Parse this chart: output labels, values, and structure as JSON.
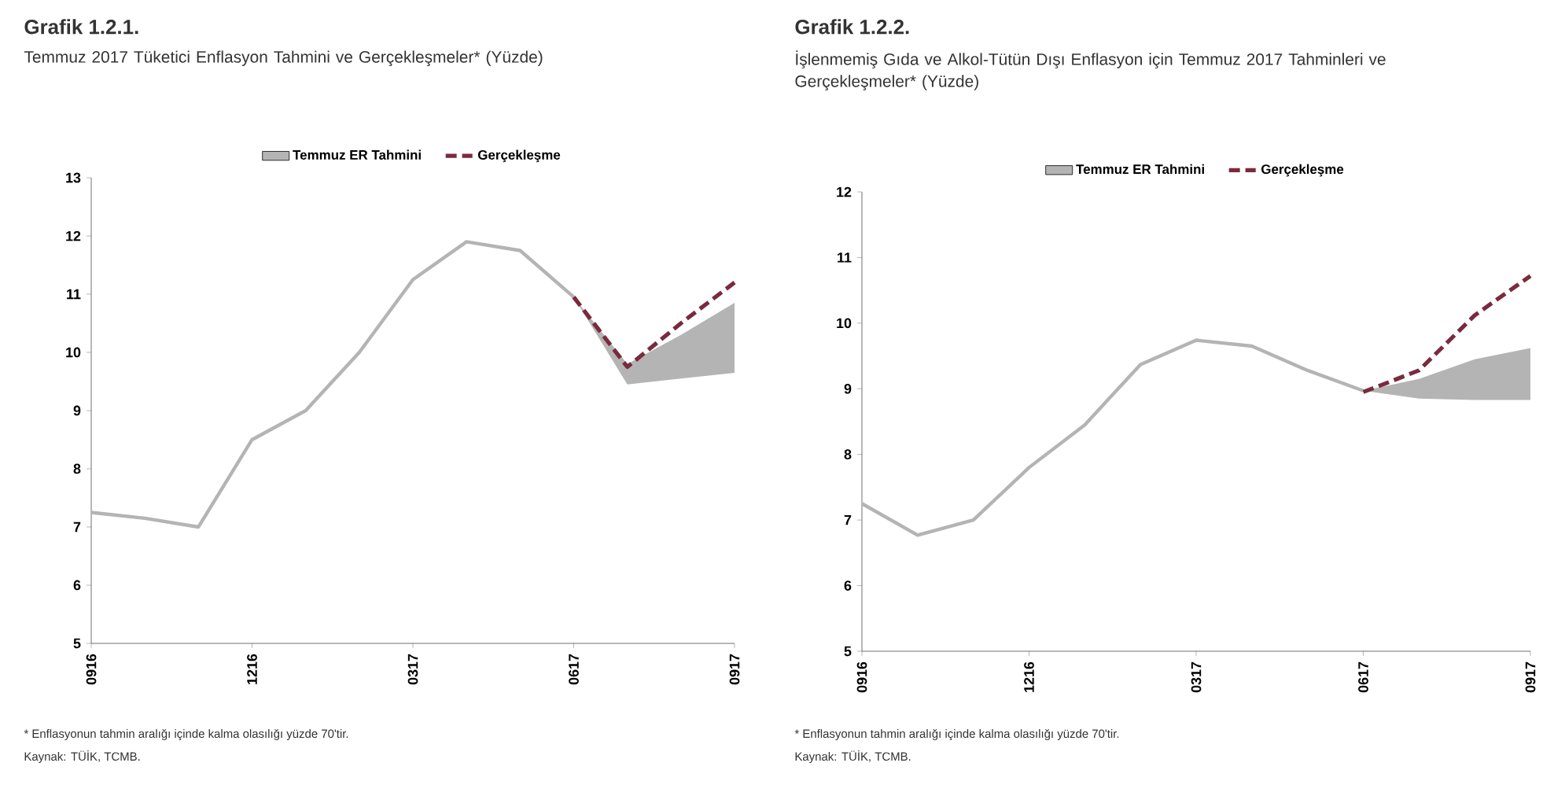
{
  "chart_data": [
    {
      "type": "line",
      "title": "Grafik 1.2.1.",
      "subtitle": "Temmuz 2017 Tüketici Enflasyon Tahmini ve Gerçekleşmeler* (Yüzde)",
      "categories": [
        "0916",
        null,
        null,
        "1216",
        null,
        null,
        "0317",
        null,
        null,
        "0617",
        null,
        null,
        "0917"
      ],
      "series": [
        {
          "name": "Temmuz ER Tahmini",
          "color": "#b4b4b4",
          "line_style": "solid",
          "values": [
            7.25,
            7.15,
            7.0,
            8.5,
            9.0,
            10.0,
            11.25,
            11.9,
            11.75,
            10.95,
            null,
            null,
            null
          ],
          "lower": [
            null,
            null,
            null,
            null,
            null,
            null,
            null,
            null,
            null,
            10.95,
            9.45,
            9.55,
            9.65
          ],
          "upper": [
            null,
            null,
            null,
            null,
            null,
            null,
            null,
            null,
            null,
            10.95,
            9.8,
            10.3,
            10.85
          ]
        },
        {
          "name": "Gerçekleşme",
          "color": "#7b2a3e",
          "line_style": "dashed",
          "values": [
            null,
            null,
            null,
            null,
            null,
            null,
            null,
            null,
            null,
            10.95,
            9.75,
            10.5,
            11.2
          ]
        }
      ],
      "ylim": [
        5,
        13
      ],
      "yticks": [
        5,
        6,
        7,
        8,
        9,
        10,
        11,
        12,
        13
      ],
      "legend": "top",
      "annotations": [
        "* Enflasyonun tahmin aralığı içinde kalma olasılığı yüzde 70'tir.",
        "Kaynak: TÜİK, TCMB."
      ]
    },
    {
      "type": "line",
      "title": "Grafik 1.2.2.",
      "subtitle": "İşlenmemiş Gıda ve Alkol-Tütün Dışı Enflasyon için Temmuz 2017 Tahminleri ve Gerçekleşmeler* (Yüzde)",
      "categories": [
        "0916",
        null,
        null,
        "1216",
        null,
        null,
        "0317",
        null,
        null,
        "0617",
        null,
        null,
        "0917"
      ],
      "series": [
        {
          "name": "Temmuz ER Tahmini",
          "color": "#b4b4b4",
          "line_style": "solid",
          "values": [
            7.25,
            6.77,
            7.0,
            7.8,
            8.45,
            9.37,
            9.74,
            9.65,
            9.28,
            8.97,
            null,
            null,
            null
          ],
          "lower": [
            null,
            null,
            null,
            null,
            null,
            null,
            null,
            null,
            null,
            8.97,
            8.85,
            8.83,
            8.83
          ],
          "upper": [
            null,
            null,
            null,
            null,
            null,
            null,
            null,
            null,
            null,
            8.97,
            9.15,
            9.45,
            9.62
          ]
        },
        {
          "name": "Gerçekleşme",
          "color": "#7b2a3e",
          "line_style": "dashed",
          "values": [
            null,
            null,
            null,
            null,
            null,
            null,
            null,
            null,
            null,
            8.95,
            9.28,
            10.12,
            10.72
          ]
        }
      ],
      "ylim": [
        5,
        12
      ],
      "yticks": [
        5,
        6,
        7,
        8,
        9,
        10,
        11,
        12
      ],
      "legend": "top",
      "annotations": [
        "* Enflasyonun tahmin aralığı içinde kalma olasılığı yüzde 70'tir.",
        "Kaynak: TÜİK, TCMB."
      ]
    }
  ]
}
